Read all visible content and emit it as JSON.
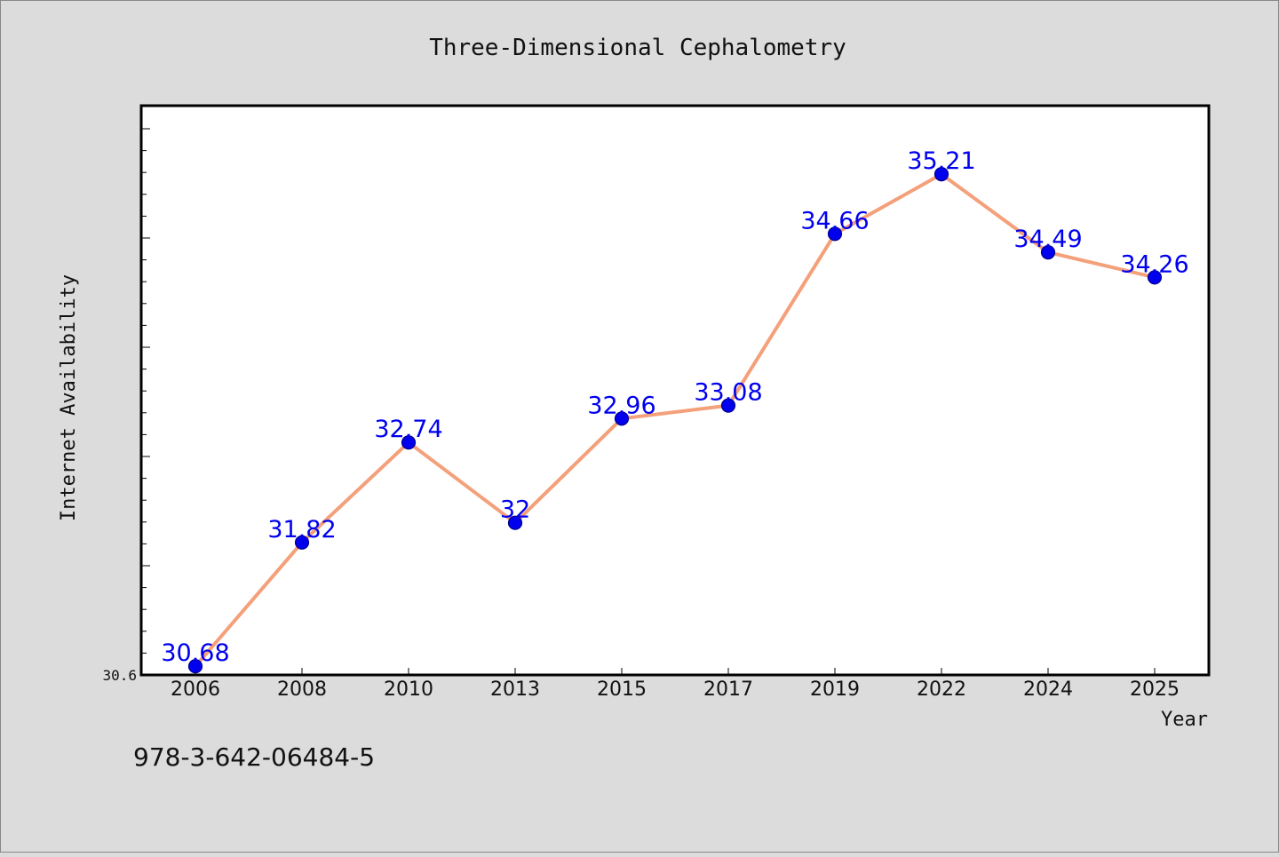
{
  "chart_data": {
    "type": "line",
    "title": "Three-Dimensional Cephalometry",
    "xlabel": "Year",
    "ylabel": "Internet Availability",
    "categories": [
      "2006",
      "2008",
      "2010",
      "2013",
      "2015",
      "2017",
      "2019",
      "2022",
      "2024",
      "2025"
    ],
    "series": [
      {
        "values": [
          30.68,
          31.82,
          32.74,
          32,
          32.96,
          33.08,
          34.66,
          35.21,
          34.49,
          34.26
        ],
        "data_labels": [
          "30.68",
          "31.82",
          "32.74",
          "32",
          "32.96",
          "33.08",
          "34.66",
          "35.21",
          "34.49",
          "34.26"
        ]
      }
    ],
    "y_tick_labels": [
      "30.6"
    ],
    "ylim": [
      30.6,
      35.84
    ],
    "grid": false,
    "legend": "none",
    "colors": {
      "line": "#f4a07a",
      "marker": "#0000ee",
      "data_label": "#0000ee",
      "background": "#dcdcdc",
      "plot_background": "#ffffff"
    }
  },
  "footer": {
    "isbn": "978-3-642-06484-5"
  }
}
